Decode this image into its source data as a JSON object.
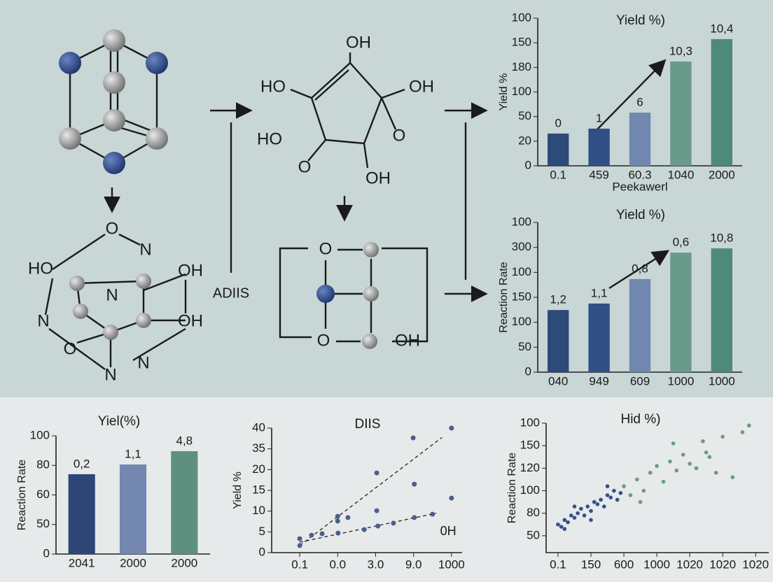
{
  "diagram": {
    "labels": [
      "O",
      "N",
      "HO",
      "OH",
      "N",
      "N",
      "OH",
      "O",
      "N",
      "N",
      "OH",
      "HO",
      "OH",
      "HO",
      "O",
      "O",
      "OH",
      "O",
      "O",
      "OH",
      "ADIIS"
    ]
  },
  "chart_data": [
    {
      "type": "bar",
      "title": "Yield %)",
      "y_label": "Yield %",
      "x_label": "Peekawerl",
      "categories": [
        "0.1",
        "459",
        "60.3",
        "1040",
        "2000"
      ],
      "values": [
        1.31,
        1.51,
        2.16,
        4.24,
        5.15
      ],
      "bar_labels": [
        "0",
        "1",
        "6",
        "10,3",
        "10,4"
      ],
      "colors": [
        "#2d4a7a",
        "#2f4f85",
        "#7088b0",
        "#6a9a8a",
        "#4e8a78"
      ],
      "ylim": [
        0,
        6
      ],
      "yticks": [
        {
          "value": 6,
          "label": "100"
        },
        {
          "value": 5,
          "label": "150"
        },
        {
          "value": 4,
          "label": "180"
        },
        {
          "value": 3,
          "label": "100"
        },
        {
          "value": 2,
          "label": "50"
        },
        {
          "value": 1,
          "label": "20"
        },
        {
          "value": 0,
          "label": "0"
        }
      ]
    },
    {
      "type": "bar",
      "title": "Yield %)",
      "y_label": "Reaction Rate",
      "categories": [
        "040",
        "949",
        "609",
        "1000",
        "1000"
      ],
      "values": [
        2.49,
        2.75,
        3.73,
        4.79,
        4.96
      ],
      "bar_labels": [
        "1,2",
        "1,1",
        "0,8",
        "0,6",
        "10,8"
      ],
      "colors": [
        "#2d4a7a",
        "#2f4f85",
        "#7088b0",
        "#6a9a8a",
        "#4e8a78"
      ],
      "ylim": [
        0,
        6
      ],
      "yticks": [
        {
          "value": 6,
          "label": "100"
        },
        {
          "value": 5,
          "label": "300"
        },
        {
          "value": 4,
          "label": "100"
        },
        {
          "value": 3,
          "label": "150"
        },
        {
          "value": 2,
          "label": "100"
        },
        {
          "value": 1,
          "label": "50"
        },
        {
          "value": 0,
          "label": "0"
        }
      ]
    },
    {
      "type": "bar",
      "title": "Yiel(%)",
      "y_label": "Reaction Rate",
      "categories": [
        "2041",
        "2000",
        "2000"
      ],
      "values": [
        2.7,
        3.03,
        3.48
      ],
      "bar_labels": [
        "0,2",
        "1,1",
        "4,8"
      ],
      "colors": [
        "#2e4676",
        "#7387b0",
        "#5e9080"
      ],
      "ylim": [
        0,
        4
      ],
      "yticks": [
        {
          "value": 4,
          "label": "100"
        },
        {
          "value": 3,
          "label": "80"
        },
        {
          "value": 2,
          "label": "60"
        },
        {
          "value": 1,
          "label": "50"
        },
        {
          "value": 0,
          "label": "0"
        }
      ]
    },
    {
      "type": "scatter",
      "title": "DIIS",
      "y_label": "Yield %",
      "annotation": "0H",
      "xlim": [
        -0.74,
        4.28
      ],
      "xticks": [
        {
          "value": 0,
          "label": "0.1"
        },
        {
          "value": 1,
          "label": "0.0"
        },
        {
          "value": 2,
          "label": "3.0"
        },
        {
          "value": 3,
          "label": "9.0"
        },
        {
          "value": 4,
          "label": "1000"
        }
      ],
      "ylim": [
        0,
        6
      ],
      "yticks": [
        {
          "value": 6,
          "label": "40"
        },
        {
          "value": 5,
          "label": "35"
        },
        {
          "value": 4,
          "label": "20"
        },
        {
          "value": 3,
          "label": "15"
        },
        {
          "value": 2,
          "label": "10"
        },
        {
          "value": 1,
          "label": "5"
        },
        {
          "value": 0,
          "label": "0"
        }
      ],
      "series": [
        {
          "color": "#4a5f90",
          "x": [
            0,
            0,
            0.31,
            0.59,
            1.0,
            1.0,
            1.01,
            1.27,
            1.7,
            2.03,
            2.03,
            2.06,
            2.47,
            2.99,
            3.02,
            3.02,
            3.5,
            4.0,
            4.0
          ],
          "values": [
            0.67,
            0.34,
            0.84,
            0.91,
            1.52,
            1.75,
            0.94,
            1.69,
            1.11,
            3.84,
            2.02,
            1.28,
            1.42,
            5.53,
            3.3,
            1.69,
            1.85,
            6.0,
            2.63
          ]
        }
      ]
    },
    {
      "type": "scatter",
      "title": "Hid %)",
      "y_label": "Reaction Rate",
      "xlim": [
        -0.36,
        6.4
      ],
      "xticks": [
        {
          "value": 0,
          "label": "0.1"
        },
        {
          "value": 1,
          "label": "150"
        },
        {
          "value": 2,
          "label": "600"
        },
        {
          "value": 3,
          "label": "1000"
        },
        {
          "value": 4,
          "label": "1020"
        },
        {
          "value": 5,
          "label": "1020"
        },
        {
          "value": 6,
          "label": "1020"
        }
      ],
      "ylim": [
        -0.75,
        5
      ],
      "yticks": [
        {
          "value": 5,
          "label": "100"
        },
        {
          "value": 4,
          "label": "150"
        },
        {
          "value": 3,
          "label": "120"
        },
        {
          "value": 2,
          "label": "100"
        },
        {
          "value": 1,
          "label": "80"
        },
        {
          "value": 0,
          "label": "50"
        }
      ],
      "series": [
        {
          "color": "#34508a",
          "x": [
            0,
            0.1,
            0.2,
            0.3,
            0.4,
            0.5,
            0.6,
            0.7,
            0.8,
            0.9,
            1.0,
            1.1,
            1.2,
            1.3,
            1.4,
            1.5,
            1.6,
            1.7,
            1.8,
            1.9,
            0.5,
            1.0,
            1.5,
            0.2
          ],
          "values": [
            0.5,
            0.4,
            0.7,
            0.6,
            0.9,
            0.8,
            1.0,
            1.2,
            0.9,
            1.3,
            1.1,
            1.5,
            1.4,
            1.6,
            1.3,
            1.8,
            1.7,
            2.0,
            1.6,
            1.9,
            1.3,
            0.7,
            2.2,
            0.3
          ]
        },
        {
          "color": "#6a9a88",
          "x": [
            2.0,
            2.2,
            2.4,
            2.6,
            2.8,
            3.0,
            3.2,
            3.4,
            3.6,
            3.8,
            4.0,
            4.2,
            4.4,
            4.6,
            4.8,
            5.0,
            5.3,
            5.6,
            5.8,
            2.5,
            3.5,
            4.5
          ],
          "values": [
            2.2,
            1.8,
            2.5,
            2.0,
            2.8,
            3.1,
            2.4,
            3.3,
            2.9,
            3.6,
            3.2,
            3.0,
            4.2,
            3.5,
            2.8,
            4.4,
            2.6,
            4.6,
            4.9,
            1.5,
            4.1,
            3.7
          ]
        }
      ]
    }
  ]
}
